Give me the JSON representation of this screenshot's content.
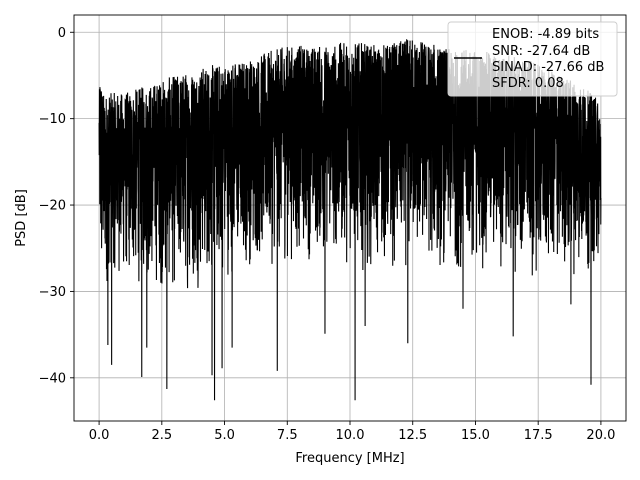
{
  "chart_data": {
    "type": "line",
    "title": "",
    "xlabel": "Frequency [MHz]",
    "ylabel": "PSD [dB]",
    "xlim": [
      -1.0,
      21.0
    ],
    "ylim": [
      -45.0,
      2.0
    ],
    "xticks": [
      0.0,
      2.5,
      5.0,
      7.5,
      10.0,
      12.5,
      15.0,
      17.5,
      20.0
    ],
    "xtick_labels": [
      "0.0",
      "2.5",
      "5.0",
      "7.5",
      "10.0",
      "12.5",
      "15.0",
      "17.5",
      "20.0"
    ],
    "yticks": [
      0,
      -10,
      -20,
      -30,
      -40
    ],
    "ytick_labels": [
      "0",
      "−10",
      "−20",
      "−30",
      "−40"
    ],
    "grid": true,
    "legend_position": "top-right",
    "legend_lines": [
      "ENOB: -4.89 bits",
      "SNR: -27.64 dB",
      "SINAD: -27.66 dB",
      "SFDR: 0.08"
    ],
    "series": [
      {
        "color": "#000000",
        "envelope": {
          "x": [
            0.0,
            0.05,
            0.15,
            0.5,
            1.0,
            2.0,
            3.0,
            4.0,
            5.0,
            6.0,
            7.0,
            7.5,
            8.0,
            9.0,
            10.0,
            11.0,
            12.0,
            12.5,
            13.0,
            14.0,
            15.0,
            16.0,
            17.0,
            18.0,
            19.0,
            20.0
          ],
          "upper": [
            -8.0,
            -3.2,
            -7.0,
            -7.0,
            -7.0,
            -6.0,
            -5.0,
            -4.0,
            -3.5,
            -3.0,
            -2.0,
            -1.5,
            -1.5,
            -1.5,
            -1.0,
            -1.5,
            -1.0,
            -0.5,
            -1.0,
            -2.0,
            -2.0,
            -2.5,
            -3.0,
            -4.5,
            -5.5,
            -8.0
          ],
          "lower": [
            -20.0,
            -35.0,
            -32.0,
            -28.0,
            -30.0,
            -30.0,
            -31.0,
            -30.0,
            -29.0,
            -28.0,
            -27.5,
            -27.5,
            -27.0,
            -27.0,
            -27.5,
            -28.0,
            -28.5,
            -27.5,
            -28.0,
            -28.5,
            -28.0,
            -28.5,
            -29.0,
            -29.0,
            -28.5,
            -28.0
          ]
        },
        "spikes": [
          {
            "x": 0.35,
            "y": -36.2
          },
          {
            "x": 0.5,
            "y": -38.5
          },
          {
            "x": 1.7,
            "y": -39.9
          },
          {
            "x": 1.9,
            "y": -36.5
          },
          {
            "x": 2.7,
            "y": -41.3
          },
          {
            "x": 4.5,
            "y": -39.7
          },
          {
            "x": 4.6,
            "y": -42.6
          },
          {
            "x": 4.9,
            "y": -38.9
          },
          {
            "x": 5.3,
            "y": -36.5
          },
          {
            "x": 7.1,
            "y": -39.2
          },
          {
            "x": 9.0,
            "y": -34.9
          },
          {
            "x": 10.2,
            "y": -42.6
          },
          {
            "x": 10.6,
            "y": -34.0
          },
          {
            "x": 12.3,
            "y": -36.0
          },
          {
            "x": 14.5,
            "y": -32.0
          },
          {
            "x": 16.5,
            "y": -35.2
          },
          {
            "x": 18.8,
            "y": -31.5
          },
          {
            "x": 19.6,
            "y": -40.8
          }
        ]
      }
    ]
  }
}
